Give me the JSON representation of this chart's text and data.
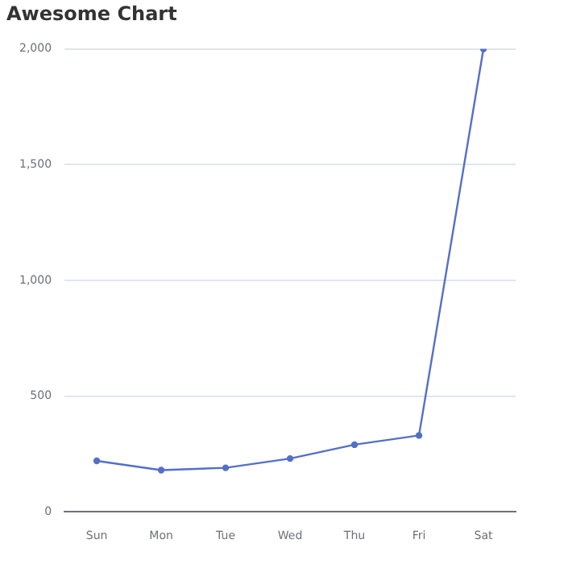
{
  "chart_data": {
    "type": "line",
    "title": "Awesome Chart",
    "categories": [
      "Sun",
      "Mon",
      "Tue",
      "Wed",
      "Thu",
      "Fri",
      "Sat"
    ],
    "series": [
      {
        "color": "#5470c6",
        "values": [
          220,
          180,
          190,
          230,
          290,
          330,
          2000
        ]
      }
    ],
    "ylim": [
      0,
      2000
    ],
    "yticks": [
      0,
      500,
      {
        "value": 1000,
        "label": "1,000"
      },
      {
        "value": 1500,
        "label": "1,500"
      },
      {
        "value": 2000,
        "label": "2,000"
      }
    ],
    "grid": "y",
    "legend": false,
    "marker": "circle",
    "line_style": "solid"
  }
}
